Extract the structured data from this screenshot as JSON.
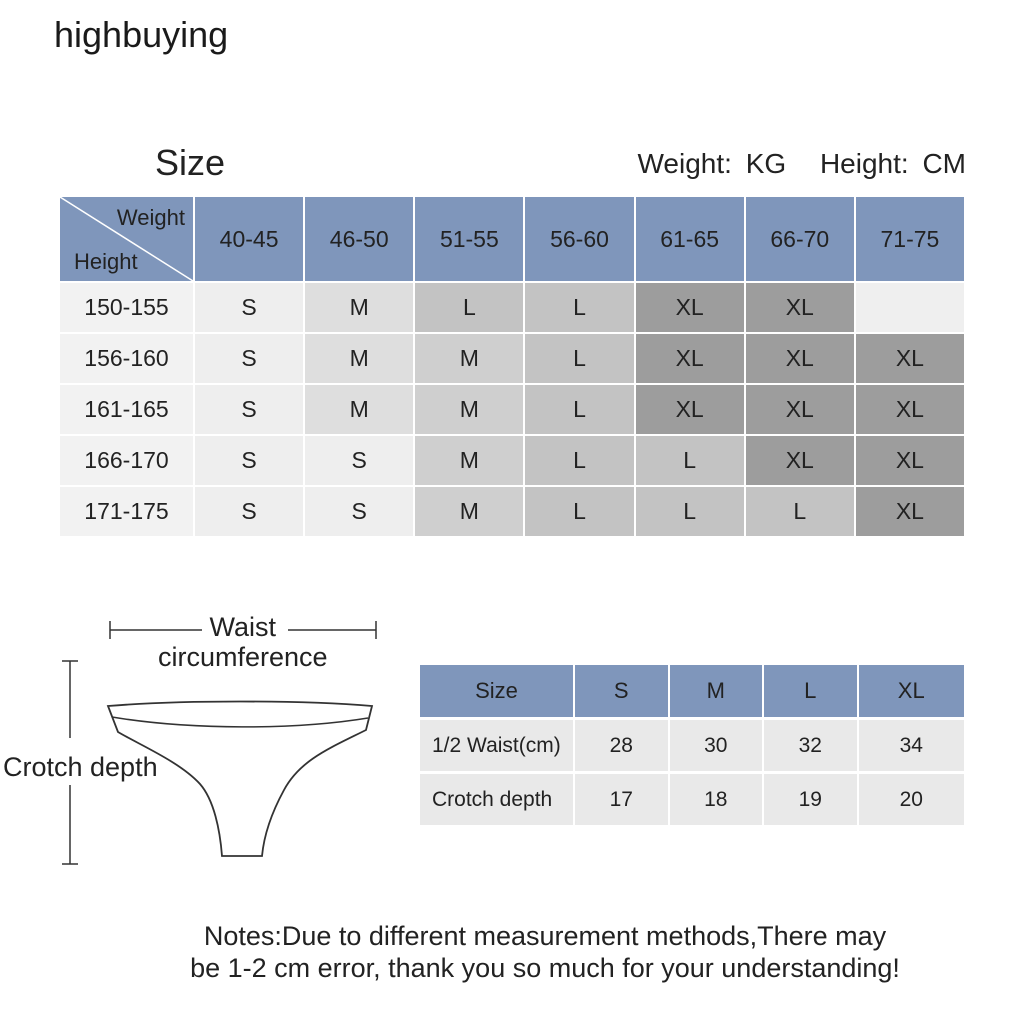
{
  "brand": "highbuying",
  "size_title": "Size",
  "units": {
    "weight": "Weight:",
    "weight_unit": "KG",
    "height": "Height:",
    "height_unit": "CM"
  },
  "size_chart": {
    "corner_top": "Weight",
    "corner_bottom": "Height",
    "weight_ranges": [
      "40-45",
      "46-50",
      "51-55",
      "56-60",
      "61-65",
      "66-70",
      "71-75"
    ],
    "rows": [
      {
        "height": "150-155",
        "sizes": [
          "S",
          "M",
          "L",
          "L",
          "XL",
          "XL",
          ""
        ]
      },
      {
        "height": "156-160",
        "sizes": [
          "S",
          "M",
          "M",
          "L",
          "XL",
          "XL",
          "XL"
        ]
      },
      {
        "height": "161-165",
        "sizes": [
          "S",
          "M",
          "M",
          "L",
          "XL",
          "XL",
          "XL"
        ]
      },
      {
        "height": "166-170",
        "sizes": [
          "S",
          "S",
          "M",
          "L",
          "L",
          "XL",
          "XL"
        ]
      },
      {
        "height": "171-175",
        "sizes": [
          "S",
          "S",
          "M",
          "L",
          "L",
          "L",
          "XL"
        ]
      }
    ]
  },
  "diagram": {
    "waist_label_1": "Waist",
    "waist_label_2": "circumference",
    "crotch_label": "Crotch depth"
  },
  "measure_table": {
    "header": [
      "Size",
      "S",
      "M",
      "L",
      "XL"
    ],
    "rows": [
      {
        "label": "1/2 Waist(cm)",
        "values": [
          "28",
          "30",
          "32",
          "34"
        ]
      },
      {
        "label": "Crotch depth",
        "values": [
          "17",
          "18",
          "19",
          "20"
        ]
      }
    ]
  },
  "notes": {
    "line1": "Notes:Due to different measurement methods,There may",
    "line2": "be 1-2 cm error, thank you so much for your understanding!"
  },
  "colors": {
    "header_blue": "#7f96bb"
  }
}
